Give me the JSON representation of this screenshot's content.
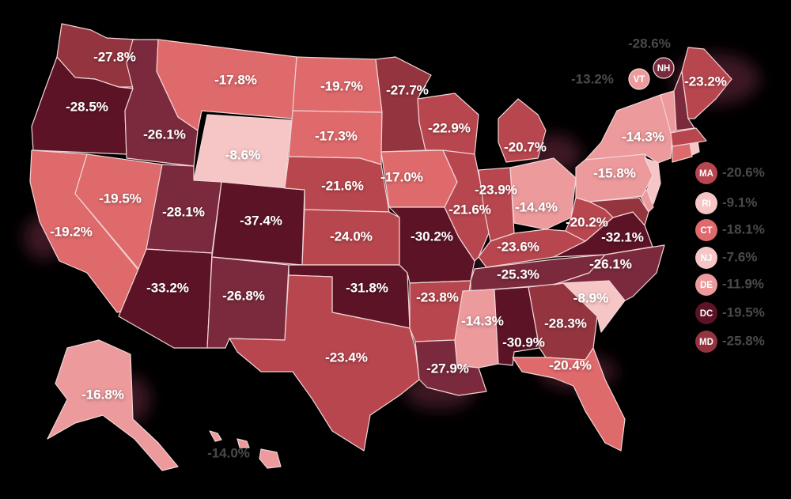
{
  "colors": {
    "c1": "#5c1326",
    "c2": "#7a2a3c",
    "c3": "#94343f",
    "c4": "#b8464e",
    "c5": "#df6a6c",
    "c6": "#ec9a9c",
    "c7": "#f6c6c6",
    "halo": "#4a1a2a"
  },
  "states": [
    {
      "id": "WA",
      "value": "-27.8%",
      "tone": "c3"
    },
    {
      "id": "OR",
      "value": "-28.5%",
      "tone": "c1"
    },
    {
      "id": "CA",
      "value": "-19.2%",
      "tone": "c5"
    },
    {
      "id": "ID",
      "value": "-26.1%",
      "tone": "c2"
    },
    {
      "id": "NV",
      "value": "-19.5%",
      "tone": "c5"
    },
    {
      "id": "MT",
      "value": "-17.8%",
      "tone": "c5"
    },
    {
      "id": "WY",
      "value": "-8.6%",
      "tone": "c7"
    },
    {
      "id": "UT",
      "value": "-28.1%",
      "tone": "c2"
    },
    {
      "id": "AZ",
      "value": "-33.2%",
      "tone": "c1"
    },
    {
      "id": "CO",
      "value": "-37.4%",
      "tone": "c1"
    },
    {
      "id": "NM",
      "value": "-26.8%",
      "tone": "c2"
    },
    {
      "id": "ND",
      "value": "-19.7%",
      "tone": "c5"
    },
    {
      "id": "SD",
      "value": "-17.3%",
      "tone": "c5"
    },
    {
      "id": "NE",
      "value": "-21.6%",
      "tone": "c4"
    },
    {
      "id": "KS",
      "value": "-24.0%",
      "tone": "c4"
    },
    {
      "id": "OK",
      "value": "-31.8%",
      "tone": "c1"
    },
    {
      "id": "TX",
      "value": "-23.4%",
      "tone": "c4"
    },
    {
      "id": "MN",
      "value": "-27.7%",
      "tone": "c3"
    },
    {
      "id": "IA",
      "value": "-17.0%",
      "tone": "c5"
    },
    {
      "id": "MO",
      "value": "-30.2%",
      "tone": "c1"
    },
    {
      "id": "AR",
      "value": "-23.8%",
      "tone": "c4"
    },
    {
      "id": "LA",
      "value": "-27.9%",
      "tone": "c2"
    },
    {
      "id": "WI",
      "value": "-22.9%",
      "tone": "c4"
    },
    {
      "id": "IL",
      "value": "-21.6%",
      "tone": "c4"
    },
    {
      "id": "MI",
      "value": "-20.7%",
      "tone": "c4"
    },
    {
      "id": "IN",
      "value": "-23.9%",
      "tone": "c4"
    },
    {
      "id": "OH",
      "value": "-14.4%",
      "tone": "c6"
    },
    {
      "id": "KY",
      "value": "-23.6%",
      "tone": "c4"
    },
    {
      "id": "TN",
      "value": "-25.3%",
      "tone": "c2"
    },
    {
      "id": "MS",
      "value": "-14.3%",
      "tone": "c6"
    },
    {
      "id": "AL",
      "value": "-30.9%",
      "tone": "c1"
    },
    {
      "id": "GA",
      "value": "-28.3%",
      "tone": "c3"
    },
    {
      "id": "FL",
      "value": "-20.4%",
      "tone": "c5"
    },
    {
      "id": "SC",
      "value": "-8.9%",
      "tone": "c7"
    },
    {
      "id": "NC",
      "value": "-26.1%",
      "tone": "c2"
    },
    {
      "id": "VA",
      "value": "-32.1%",
      "tone": "c1"
    },
    {
      "id": "WV",
      "value": "-20.2%",
      "tone": "c4"
    },
    {
      "id": "PA",
      "value": "-15.8%",
      "tone": "c6"
    },
    {
      "id": "NY",
      "value": "-14.3%",
      "tone": "c6"
    },
    {
      "id": "ME",
      "value": "-23.2%",
      "tone": "c4"
    },
    {
      "id": "AK",
      "value": "-16.8%",
      "tone": "c6"
    },
    {
      "id": "HI",
      "value": "-14.0%",
      "tone": "c6"
    }
  ],
  "callouts": [
    {
      "id": "VT",
      "value": "-13.2%",
      "tone": "c6"
    },
    {
      "id": "NH",
      "value": "-28.6%",
      "tone": "c2"
    }
  ],
  "sidebar": [
    {
      "id": "MA",
      "value": "-20.6%",
      "tone": "c4"
    },
    {
      "id": "RI",
      "value": "-9.1%",
      "tone": "c7"
    },
    {
      "id": "CT",
      "value": "-18.1%",
      "tone": "c5"
    },
    {
      "id": "NJ",
      "value": "-7.6%",
      "tone": "c7"
    },
    {
      "id": "DE",
      "value": "-11.9%",
      "tone": "c6"
    },
    {
      "id": "DC",
      "value": "-19.5%",
      "tone": "c1"
    },
    {
      "id": "MD",
      "value": "-25.8%",
      "tone": "c3"
    }
  ]
}
